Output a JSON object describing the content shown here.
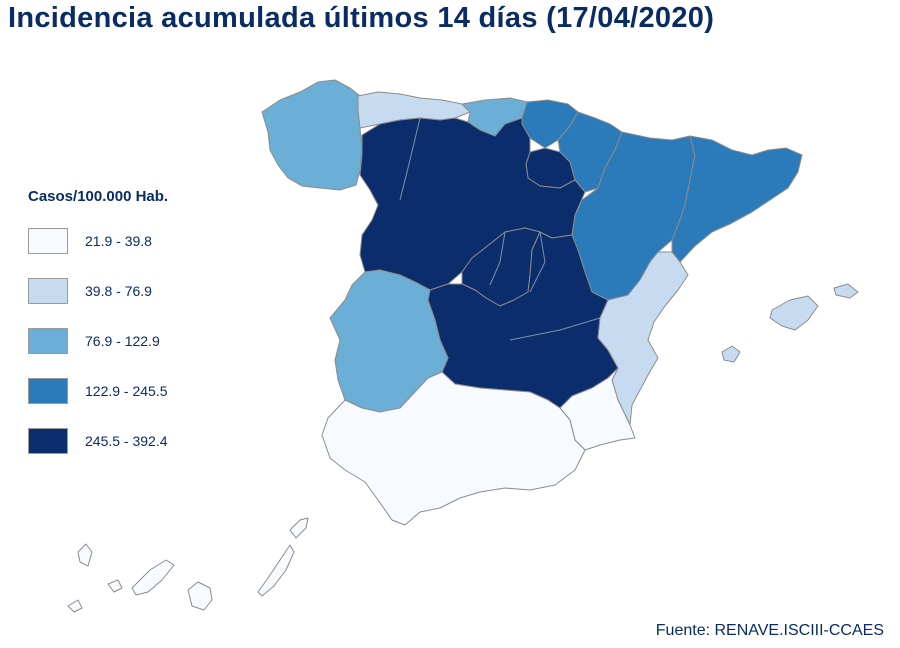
{
  "title": "Incidencia acumulada últimos 14 días (17/04/2020)",
  "legend": {
    "title": "Casos/100.000 Hab.",
    "items": [
      {
        "label": "21.9 - 39.8",
        "color": "#f7fbff"
      },
      {
        "label": "39.8 - 76.9",
        "color": "#c6dbef"
      },
      {
        "label": "76.9 - 122.9",
        "color": "#6baed6"
      },
      {
        "label": "122.9 - 245.5",
        "color": "#2b7bba"
      },
      {
        "label": "245.5 - 392.4",
        "color": "#0b2d6b"
      }
    ]
  },
  "source": "Fuente: RENAVE.ISCIII-CCAES",
  "regions": [
    {
      "name": "Galicia",
      "class": 2
    },
    {
      "name": "Asturias",
      "class": 1
    },
    {
      "name": "Cantabria",
      "class": 2
    },
    {
      "name": "País Vasco",
      "class": 3
    },
    {
      "name": "Navarra",
      "class": 3
    },
    {
      "name": "La Rioja",
      "class": 4
    },
    {
      "name": "Aragón",
      "class": 3
    },
    {
      "name": "Cataluña",
      "class": 3
    },
    {
      "name": "Castilla y León",
      "class": 4
    },
    {
      "name": "Madrid",
      "class": 4
    },
    {
      "name": "Castilla-La Mancha",
      "class": 4
    },
    {
      "name": "Extremadura",
      "class": 2
    },
    {
      "name": "Comunitat Valenciana",
      "class": 1
    },
    {
      "name": "Illes Balears",
      "class": 1
    },
    {
      "name": "Región de Murcia",
      "class": 0
    },
    {
      "name": "Andalucía",
      "class": 0
    },
    {
      "name": "Canarias",
      "class": 0
    }
  ]
}
